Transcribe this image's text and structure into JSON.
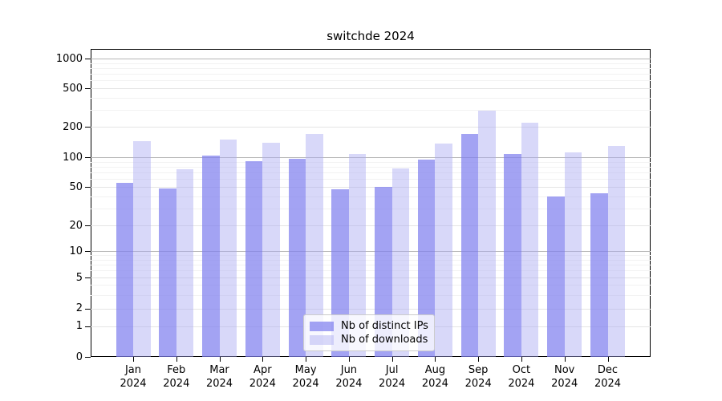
{
  "title": "switchde 2024",
  "y_axis": {
    "tick_labels": [
      "1000",
      "500",
      "200",
      "100",
      "50",
      "20",
      "10",
      "5",
      "2",
      "1",
      "0"
    ]
  },
  "x_axis": {
    "months": [
      "Jan",
      "Feb",
      "Mar",
      "Apr",
      "May",
      "Jun",
      "Jul",
      "Aug",
      "Sep",
      "Oct",
      "Nov",
      "Dec"
    ],
    "year": "2024"
  },
  "legend": {
    "items": [
      {
        "label": "Nb of distinct IPs",
        "color": "rgba(127,127,238,0.72)"
      },
      {
        "label": "Nb of downloads",
        "color": "rgba(168,168,242,0.45)"
      }
    ]
  },
  "chart_data": {
    "type": "bar",
    "title": "switchde 2024",
    "categories": [
      "Jan 2024",
      "Feb 2024",
      "Mar 2024",
      "Apr 2024",
      "May 2024",
      "Jun 2024",
      "Jul 2024",
      "Aug 2024",
      "Sep 2024",
      "Oct 2024",
      "Nov 2024",
      "Dec 2024"
    ],
    "series": [
      {
        "name": "Nb of distinct IPs",
        "color": "rgba(127,127,238,0.72)",
        "values": [
          55,
          48,
          103,
          92,
          97,
          47,
          50,
          95,
          170,
          108,
          40,
          43
        ]
      },
      {
        "name": "Nb of downloads",
        "color": "rgba(168,168,242,0.45)",
        "values": [
          145,
          75,
          150,
          140,
          170,
          108,
          77,
          137,
          295,
          220,
          112,
          130
        ]
      }
    ],
    "yticks": [
      0,
      1,
      2,
      5,
      10,
      20,
      50,
      100,
      200,
      500,
      1000
    ],
    "ylim": [
      0,
      1100
    ],
    "scale": "log-like (compressed near zero)",
    "grid": true,
    "legend_position": "lower center"
  }
}
